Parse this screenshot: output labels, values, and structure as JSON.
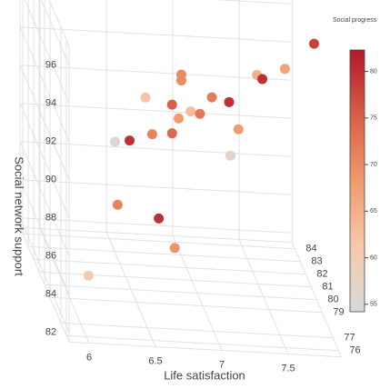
{
  "chart_data": {
    "type": "scatter3d",
    "x_label": "Life satisfaction",
    "z_label": "Social network support",
    "colorbar_title": "Social progress",
    "x": [
      7.88,
      6.88,
      6.88,
      7.45,
      7.66,
      7.49,
      6.61,
      7.11,
      7.24,
      6.81,
      6.95,
      7.02,
      6.86,
      7.31,
      6.66,
      6.81,
      6.38,
      6.49,
      7.25,
      6.71,
      6.4,
      6.83,
      6.18
    ],
    "y": [
      80,
      80,
      80,
      80,
      80,
      80,
      80,
      80,
      80,
      80,
      80,
      80,
      80,
      80,
      80,
      80,
      80,
      80,
      80,
      80,
      80,
      80,
      80
    ],
    "z": [
      94.9,
      92.9,
      92.6,
      93.1,
      93.5,
      92.9,
      91.6,
      91.8,
      91.6,
      91.3,
      91.0,
      90.9,
      90.6,
      90.2,
      89.7,
      89.8,
      89.2,
      89.3,
      88.8,
      85.3,
      85.9,
      83.8,
      82.1
    ],
    "color_values": [
      78,
      70,
      70,
      65,
      67,
      80,
      62,
      72,
      80,
      75,
      63,
      72,
      68,
      68,
      71,
      74,
      55,
      80,
      56,
      80,
      71,
      69,
      60
    ],
    "colorscale": [
      "#d9d9d9",
      "#f6c9ab",
      "#f09a6c",
      "#d95f45",
      "#b2182b"
    ],
    "clim": [
      54.2,
      82.3
    ],
    "cticks": [
      55,
      60,
      65,
      70,
      75,
      80
    ],
    "xlim": [
      5.85,
      7.9
    ],
    "xticks": [
      6,
      6.5,
      7,
      7.5
    ],
    "ylim": [
      75.5,
      84.5
    ],
    "yticks": [
      76,
      77,
      79,
      80,
      81,
      82,
      83,
      84
    ],
    "zlim": [
      81.5,
      97
    ],
    "zticks": [
      82,
      84,
      86,
      88,
      90,
      92,
      94,
      96
    ],
    "grid": true
  }
}
